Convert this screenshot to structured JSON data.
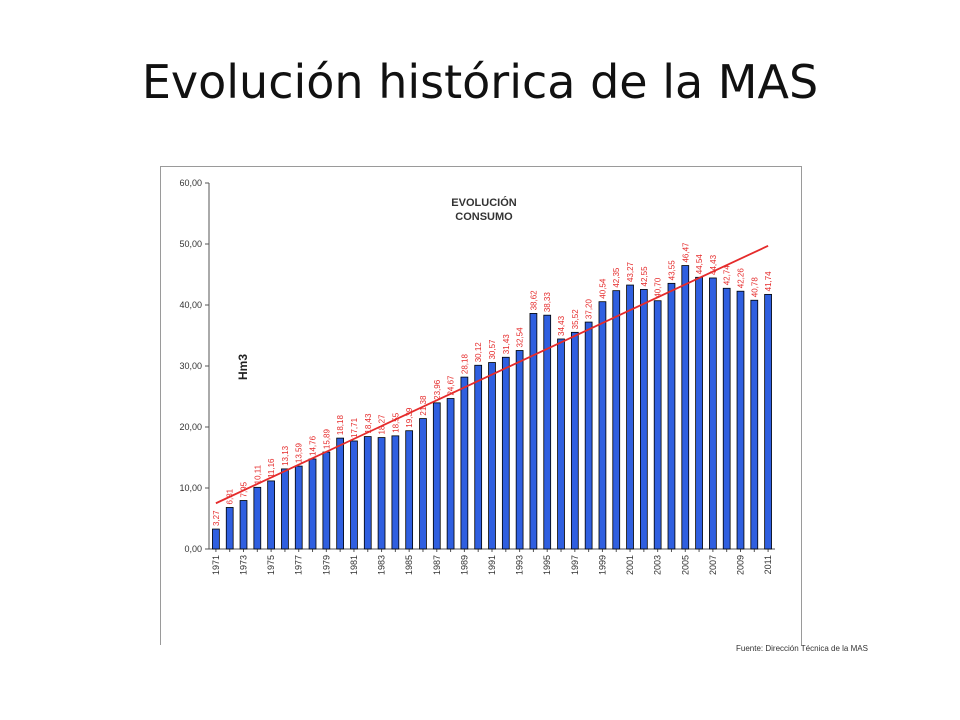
{
  "slide": {
    "title": "Evolución histórica de la MAS",
    "source": "Fuente: Dirección Técnica de la MAS"
  },
  "chart_data": {
    "type": "bar",
    "title_line1": "EVOLUCIÓN",
    "title_line2": "CONSUMO",
    "ylabel": "Hm3",
    "ylim": [
      0,
      60
    ],
    "yticks": [
      0,
      10,
      20,
      30,
      40,
      50,
      60
    ],
    "ytick_labels": [
      "0,00",
      "10,00",
      "20,00",
      "30,00",
      "40,00",
      "50,00",
      "60,00"
    ],
    "grid": false,
    "categories": [
      "1971",
      "1972",
      "1973",
      "1974",
      "1975",
      "1976",
      "1977",
      "1978",
      "1979",
      "1980",
      "1981",
      "1982",
      "1983",
      "1984",
      "1985",
      "1986",
      "1987",
      "1988",
      "1989",
      "1990",
      "1991",
      "1992",
      "1993",
      "1994",
      "1995",
      "1996",
      "1997",
      "1998",
      "1999",
      "2000",
      "2001",
      "2002",
      "2003",
      "2004",
      "2005",
      "2006",
      "2007",
      "2008",
      "2009",
      "2010",
      "2011"
    ],
    "xtick_labels": [
      "1971",
      "",
      "1973",
      "",
      "1975",
      "",
      "1977",
      "",
      "1979",
      "",
      "1981",
      "",
      "1983",
      "",
      "1985",
      "",
      "1987",
      "",
      "1989",
      "",
      "1991",
      "",
      "1993",
      "",
      "1995",
      "",
      "1997",
      "",
      "1999",
      "",
      "2001",
      "",
      "2003",
      "",
      "2005",
      "",
      "2007",
      "",
      "2009",
      "",
      "2011"
    ],
    "values": [
      3.27,
      6.81,
      7.95,
      10.11,
      11.16,
      13.13,
      13.59,
      14.76,
      15.89,
      18.18,
      17.71,
      18.43,
      18.27,
      18.55,
      19.39,
      21.38,
      23.96,
      24.67,
      28.18,
      30.12,
      30.57,
      31.43,
      32.54,
      38.62,
      38.33,
      34.43,
      35.52,
      37.2,
      40.54,
      42.35,
      43.27,
      42.55,
      40.7,
      43.55,
      46.47,
      44.54,
      44.43,
      42.74,
      42.26,
      40.78,
      41.74
    ],
    "value_labels": [
      "3,27",
      "6,81",
      "7,95",
      "10,11",
      "11,16",
      "13,13",
      "13,59",
      "14,76",
      "15,89",
      "18,18",
      "17,71",
      "18,43",
      "18,27",
      "18,55",
      "19,39",
      "21,38",
      "23,96",
      "24,67",
      "28,18",
      "30,12",
      "30,57",
      "31,43",
      "32,54",
      "38,62",
      "38,33",
      "34,43",
      "35,52",
      "37,20",
      "40,54",
      "42,35",
      "43,27",
      "42,55",
      "40,70",
      "43,55",
      "46,47",
      "44,54",
      "44,43",
      "42,74",
      "42,26",
      "40,78",
      "41,74"
    ],
    "trendline": {
      "start": 7.5,
      "end": 49.7
    },
    "colors": {
      "bar": "#2f5fe0",
      "bar_border": "#000000",
      "trend": "#e52b2b",
      "value_label": "#e52b2b"
    }
  }
}
